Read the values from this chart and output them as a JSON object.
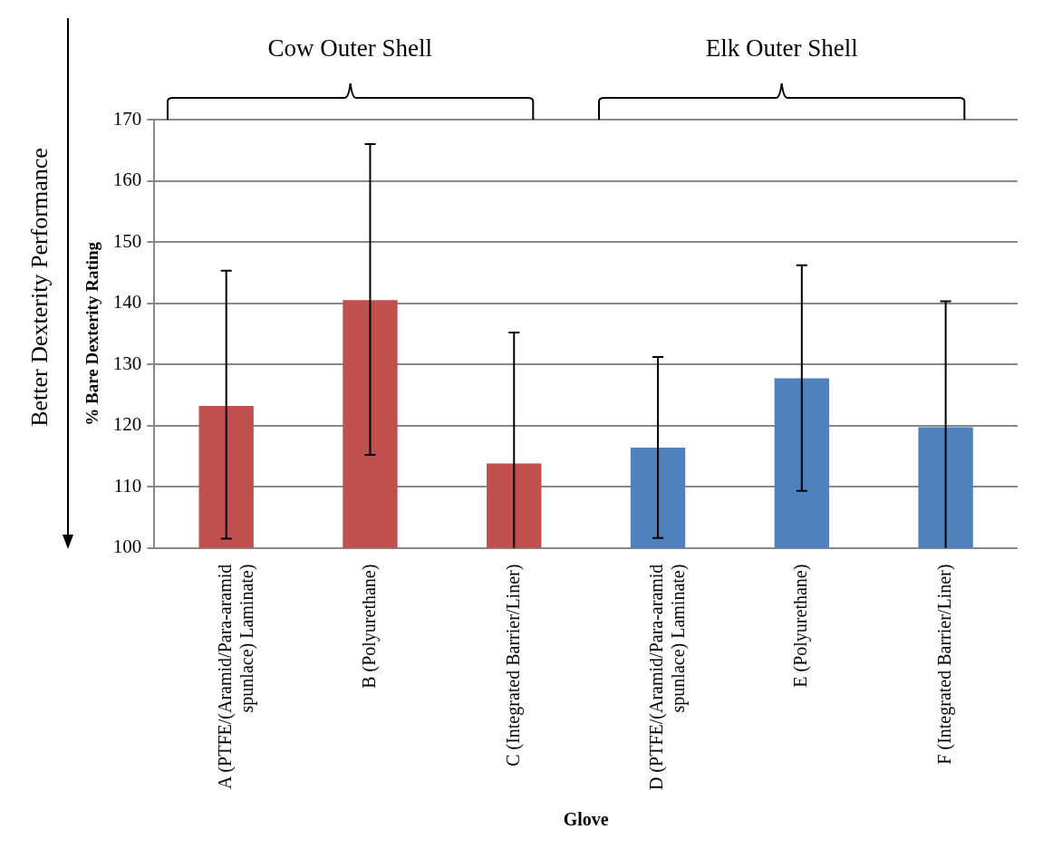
{
  "chart_data": {
    "type": "bar",
    "ylabel": "% Bare Dexterity Rating",
    "xlabel": "Glove",
    "categories": [
      "A (PTFE/(Aramid/Para-aramid spunlace) Laminate)",
      "B (Polyurethane)",
      "C (Integrated Barrier/Liner)",
      "D (PTFE/(Aramid/Para-aramid spunlace) Laminate)",
      "E (Polyurethane)",
      "F (Integrated Barrier/Liner)"
    ],
    "values": [
      123.2,
      140.5,
      113.8,
      116.4,
      127.7,
      119.7
    ],
    "colors": [
      "#c0504d",
      "#c0504d",
      "#c0504d",
      "#4f81bd",
      "#4f81bd",
      "#4f81bd"
    ],
    "errors": [
      [
        101.5,
        145.3
      ],
      [
        115.2,
        166.0
      ],
      [
        100,
        135.2
      ],
      [
        101.6,
        131.2
      ],
      [
        109.3,
        146.2
      ],
      [
        100,
        140.3
      ]
    ],
    "ylim": [
      100,
      170
    ],
    "yticks": [
      100,
      110,
      120,
      130,
      140,
      150,
      160,
      170
    ],
    "grid": "y",
    "legend": false,
    "annotations": [
      "Cow Outer Shell",
      "Elk Outer Shell",
      "Better Dexterity Performance"
    ]
  }
}
